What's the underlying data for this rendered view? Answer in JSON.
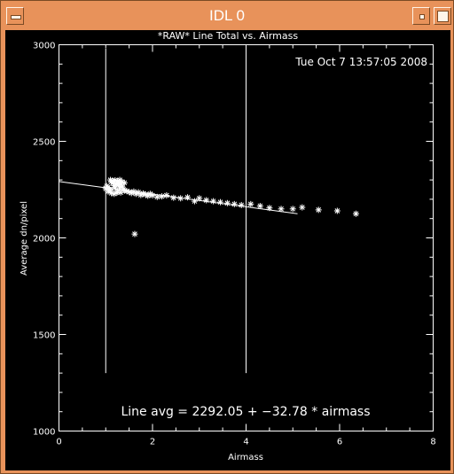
{
  "window": {
    "title": "IDL 0"
  },
  "plot": {
    "timestamp": "Tue Oct  7 13:57:05 2008",
    "fit_label": "Line avg = 2292.05 + −32.78 * airmass"
  },
  "chart_data": {
    "type": "scatter",
    "title": "*RAW* Line Total vs. Airmass",
    "xlabel": "Airmass",
    "ylabel": "Average dn/pixel",
    "xlim": [
      0,
      8
    ],
    "ylim": [
      1000,
      3000
    ],
    "xticks": [
      "0",
      "2",
      "4",
      "6",
      "8"
    ],
    "yticks": [
      "1000",
      "1500",
      "2000",
      "2500",
      "3000"
    ],
    "series": [
      {
        "marker": "asterisk",
        "x": [
          1.0,
          1.02,
          1.05,
          1.08,
          1.1,
          1.12,
          1.15,
          1.18,
          1.2,
          1.22,
          1.25,
          1.28,
          1.3,
          1.32,
          1.35,
          1.38,
          1.4,
          1.45,
          1.5,
          1.55,
          1.6,
          1.65,
          1.7,
          1.75,
          1.8,
          1.85,
          1.9,
          1.95,
          2.0,
          1.1,
          1.15,
          1.2,
          1.25,
          1.3,
          1.35,
          1.4,
          1.12,
          1.18,
          1.24,
          1.05,
          1.28,
          1.33,
          2.1,
          2.2,
          2.3,
          2.45,
          2.6,
          2.75,
          2.9,
          3.0,
          3.15,
          3.3,
          3.45,
          3.6,
          3.75,
          3.9,
          4.1,
          4.3,
          4.5,
          4.75,
          5.0,
          5.2,
          5.55,
          5.95,
          6.35,
          1.62
        ],
        "y": [
          2255,
          2268,
          2262,
          2250,
          2245,
          2290,
          2285,
          2270,
          2260,
          2280,
          2240,
          2275,
          2258,
          2235,
          2265,
          2250,
          2245,
          2242,
          2238,
          2232,
          2240,
          2228,
          2236,
          2222,
          2230,
          2225,
          2218,
          2228,
          2220,
          2300,
          2295,
          2298,
          2292,
          2300,
          2290,
          2285,
          2232,
          2228,
          2234,
          2240,
          2288,
          2278,
          2212,
          2215,
          2220,
          2208,
          2205,
          2210,
          2190,
          2205,
          2195,
          2190,
          2185,
          2180,
          2175,
          2170,
          2175,
          2165,
          2155,
          2150,
          2150,
          2158,
          2145,
          2140,
          2125,
          2020
        ]
      }
    ],
    "fit": {
      "type": "line",
      "intercept": 2292.05,
      "slope": -32.78,
      "xrange": [
        0,
        5.1
      ]
    },
    "vlines": [
      1,
      4
    ],
    "grid": false,
    "legend": "none"
  }
}
